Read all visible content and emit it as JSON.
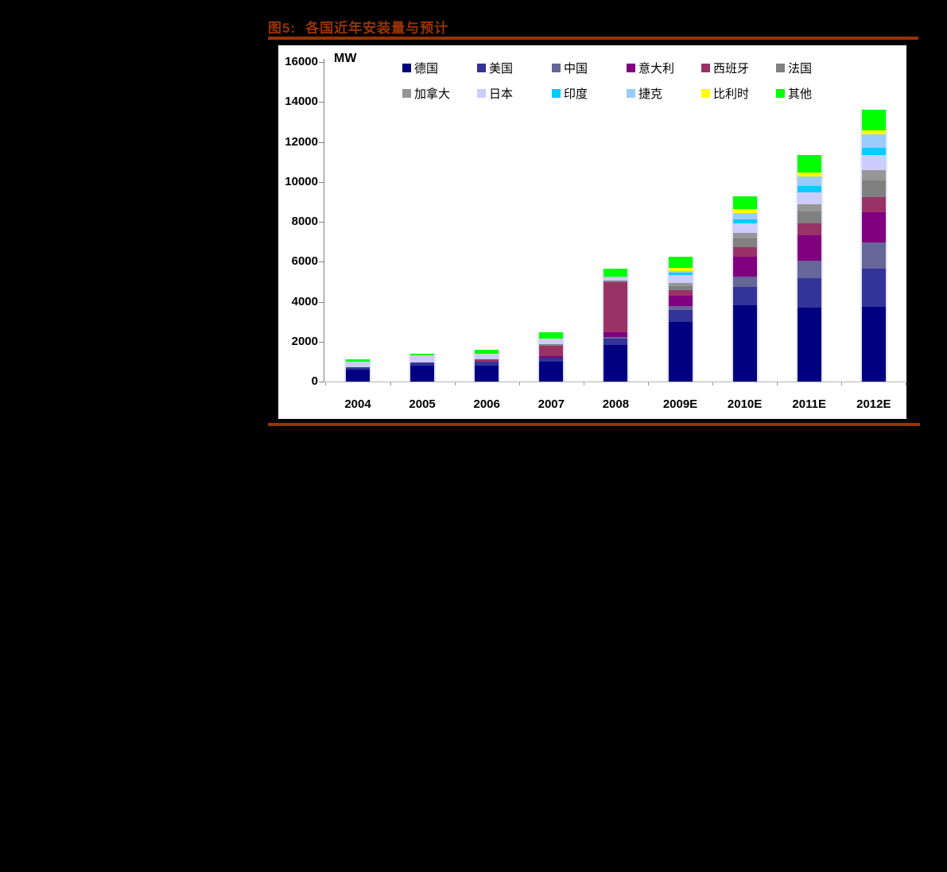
{
  "figure": {
    "title_prefix": "图5:",
    "title_text": "各国近年安装量与预计",
    "title_color": "#993300",
    "rule_color": "#993300",
    "unit_label": "MW"
  },
  "chart_data": {
    "type": "bar",
    "stacked": true,
    "title": "各国近年安装量与预计",
    "unit": "MW",
    "ylabel": "MW",
    "xlabel": "",
    "ylim": [
      0,
      16000
    ],
    "ytick_step": 2000,
    "yticks": [
      0,
      2000,
      4000,
      6000,
      8000,
      10000,
      12000,
      14000,
      16000
    ],
    "grid": false,
    "plot_bg": "#FFFFFF",
    "legend_position": "top",
    "categories": [
      "2004",
      "2005",
      "2006",
      "2007",
      "2008",
      "2009E",
      "2010E",
      "2011E",
      "2012E"
    ],
    "series": [
      {
        "name": "德国",
        "color": "#000080",
        "values": [
          600,
          800,
          800,
          990,
          1820,
          3000,
          3820,
          3690,
          3750
        ]
      },
      {
        "name": "美国",
        "color": "#333399",
        "values": [
          100,
          150,
          200,
          210,
          330,
          565,
          925,
          1480,
          1910
        ]
      },
      {
        "name": "中国",
        "color": "#666699",
        "values": [
          0,
          0,
          0,
          0,
          95,
          225,
          525,
          895,
          1320
        ]
      },
      {
        "name": "意大利",
        "color": "#800080",
        "values": [
          0,
          0,
          0,
          90,
          240,
          500,
          990,
          1250,
          1515
        ]
      },
      {
        "name": "西班牙",
        "color": "#993366",
        "values": [
          0,
          0,
          130,
          500,
          2480,
          305,
          460,
          595,
          725
        ]
      },
      {
        "name": "法国",
        "color": "#808080",
        "values": [
          0,
          0,
          0,
          90,
          90,
          200,
          460,
          620,
          855
        ]
      },
      {
        "name": "加拿大",
        "color": "#969696",
        "values": [
          0,
          0,
          0,
          0,
          0,
          155,
          265,
          365,
          525
        ]
      },
      {
        "name": "日本",
        "color": "#CCCCFF",
        "values": [
          300,
          380,
          270,
          260,
          150,
          370,
          460,
          595,
          725
        ]
      },
      {
        "name": "印度",
        "color": "#00CCFF",
        "values": [
          0,
          0,
          0,
          0,
          0,
          120,
          220,
          290,
          395
        ]
      },
      {
        "name": "捷克",
        "color": "#99CCFF",
        "values": [
          0,
          0,
          0,
          0,
          50,
          80,
          330,
          475,
          655
        ]
      },
      {
        "name": "比利时",
        "color": "#FFFF00",
        "values": [
          0,
          0,
          0,
          0,
          0,
          160,
          170,
          225,
          200
        ]
      },
      {
        "name": "其他",
        "color": "#00FF00",
        "values": [
          100,
          50,
          180,
          330,
          395,
          550,
          660,
          855,
          1055
        ]
      }
    ]
  }
}
